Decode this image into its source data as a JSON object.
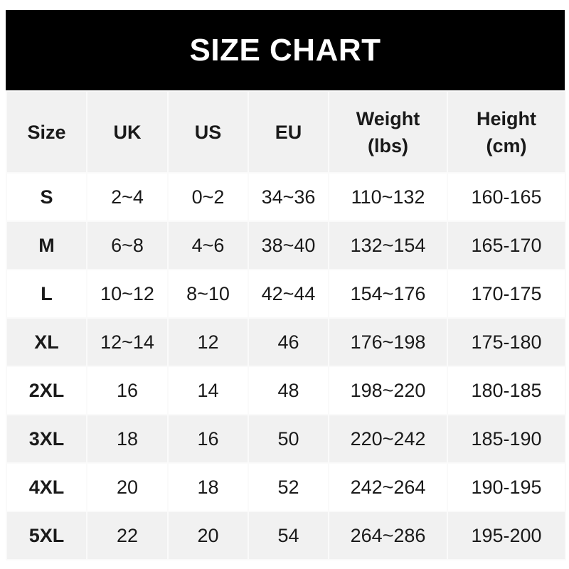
{
  "title": "SIZE CHART",
  "headers": [
    {
      "line1": "Size",
      "line2": ""
    },
    {
      "line1": "UK",
      "line2": ""
    },
    {
      "line1": "US",
      "line2": ""
    },
    {
      "line1": "EU",
      "line2": ""
    },
    {
      "line1": "Weight",
      "line2": "(lbs)"
    },
    {
      "line1": "Height",
      "line2": "(cm)"
    }
  ],
  "rows": [
    [
      "S",
      "2~4",
      "0~2",
      "34~36",
      "110~132",
      "160-165"
    ],
    [
      "M",
      "6~8",
      "4~6",
      "38~40",
      "132~154",
      "165-170"
    ],
    [
      "L",
      "10~12",
      "8~10",
      "42~44",
      "154~176",
      "170-175"
    ],
    [
      "XL",
      "12~14",
      "12",
      "46",
      "176~198",
      "175-180"
    ],
    [
      "2XL",
      "16",
      "14",
      "48",
      "198~220",
      "180-185"
    ],
    [
      "3XL",
      "18",
      "16",
      "50",
      "220~242",
      "185-190"
    ],
    [
      "4XL",
      "20",
      "18",
      "52",
      "242~264",
      "190-195"
    ],
    [
      "5XL",
      "22",
      "20",
      "54",
      "264~286",
      "195-200"
    ]
  ],
  "colors": {
    "title_bg": "#000000",
    "title_text": "#ffffff",
    "stripe": "#f1f1f1"
  }
}
